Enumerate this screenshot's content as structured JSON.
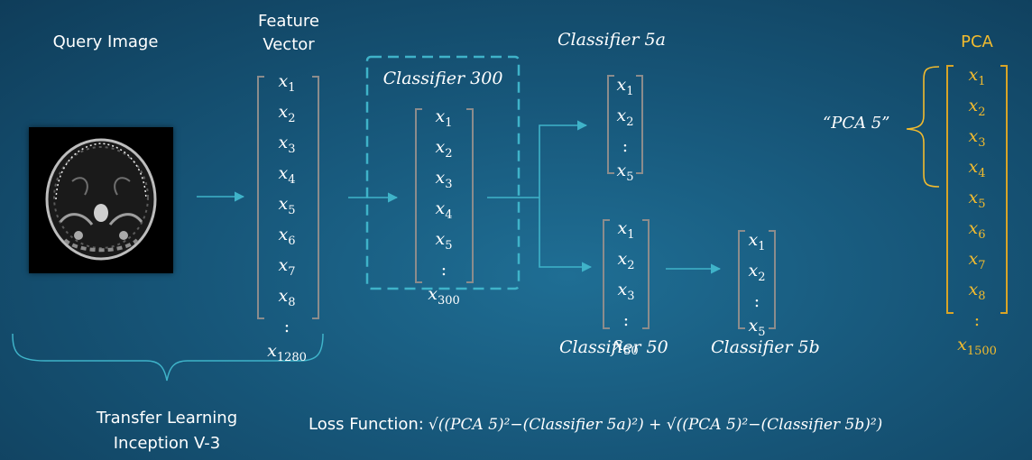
{
  "labels": {
    "query_image": "Query Image",
    "feature_vector_line1": "Feature",
    "feature_vector_line2": "Vector",
    "classifier_300": "Classifier 300",
    "classifier_5a": "Classifier 5a",
    "classifier_50": "Classifier 50",
    "classifier_5b": "Classifier 5b",
    "pca": "PCA",
    "pca5_quote": "“PCA 5”",
    "transfer_line1": "Transfer Learning",
    "transfer_line2": "Inception V-3",
    "loss_prefix": "Loss Function:",
    "loss_formula": "√((PCA 5)²−(Classifier 5a)²) + √((PCA 5)²−(Classifier 5b)²)"
  },
  "vectors": {
    "feature": [
      "x1",
      "x2",
      "x3",
      "x4",
      "x5",
      "x6",
      "x7",
      "x8",
      ":",
      "x1280"
    ],
    "c300": [
      "x1",
      "x2",
      "x3",
      "x4",
      "x5",
      ":",
      "x300"
    ],
    "c5a": [
      "x1",
      "x2",
      ":",
      "x5"
    ],
    "c50": [
      "x1",
      "x2",
      "x3",
      ":",
      "x50"
    ],
    "c5b": [
      "x1",
      "x2",
      ":",
      "x5"
    ],
    "pca": [
      "x1",
      "x2",
      "x3",
      "x4",
      "x5",
      "x6",
      "x7",
      "x8",
      ":",
      "x1500"
    ]
  },
  "colors": {
    "arrow": "#3fb3c9",
    "pca": "#f2bb2e",
    "dashed_box": "#3fb3c9",
    "bracket": "#8c8c8c"
  },
  "icons": {
    "query_image": "brain-mri-scan-image"
  }
}
